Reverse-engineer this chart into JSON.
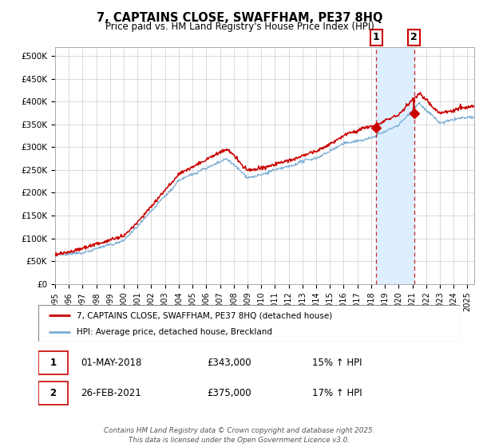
{
  "title": "7, CAPTAINS CLOSE, SWAFFHAM, PE37 8HQ",
  "subtitle": "Price paid vs. HM Land Registry's House Price Index (HPI)",
  "sale1_x": 2018.37,
  "sale1_y": 343000,
  "sale1_date": "01-MAY-2018",
  "sale1_price": "£343,000",
  "sale1_hpi": "15% ↑ HPI",
  "sale2_x": 2021.12,
  "sale2_y": 375000,
  "sale2_date": "26-FEB-2021",
  "sale2_price": "£375,000",
  "sale2_hpi": "17% ↑ HPI",
  "line1_color": "#cc0000",
  "line2_color": "#7aadd4",
  "shade_color": "#ddeeff",
  "marker_box_color": "#cc0000",
  "bg_color": "#ffffff",
  "plot_bg_color": "#ffffff",
  "grid_color": "#cccccc",
  "legend1": "7, CAPTAINS CLOSE, SWAFFHAM, PE37 8HQ (detached house)",
  "legend2": "HPI: Average price, detached house, Breckland",
  "footer": "Contains HM Land Registry data © Crown copyright and database right 2025.\nThis data is licensed under the Open Government Licence v3.0.",
  "xlim_start": 1995.0,
  "xlim_end": 2025.5,
  "ylim": [
    0,
    520000
  ],
  "yticks": [
    0,
    50000,
    100000,
    150000,
    200000,
    250000,
    300000,
    350000,
    400000,
    450000,
    500000
  ],
  "ytick_labels": [
    "£0",
    "£50K",
    "£100K",
    "£150K",
    "£200K",
    "£250K",
    "£300K",
    "£350K",
    "£400K",
    "£450K",
    "£500K"
  ],
  "xticks": [
    1995,
    1996,
    1997,
    1998,
    1999,
    2000,
    2001,
    2002,
    2003,
    2004,
    2005,
    2006,
    2007,
    2008,
    2009,
    2010,
    2011,
    2012,
    2013,
    2014,
    2015,
    2016,
    2017,
    2018,
    2019,
    2020,
    2021,
    2022,
    2023,
    2024,
    2025
  ]
}
